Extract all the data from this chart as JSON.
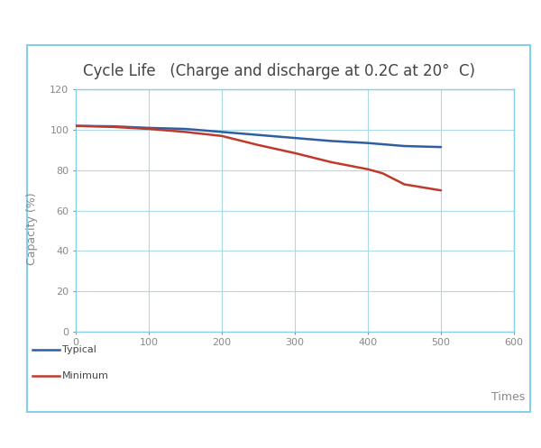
{
  "title": "Cycle Life   (Charge and discharge at 0.2C at 20°  C)",
  "xlabel": "Times",
  "ylabel": "Capacity (%)",
  "xlim": [
    0,
    600
  ],
  "ylim": [
    0,
    120
  ],
  "xticks": [
    0,
    100,
    200,
    300,
    400,
    500,
    600
  ],
  "yticks": [
    0,
    20,
    40,
    60,
    80,
    100,
    120
  ],
  "typical_x": [
    0,
    50,
    100,
    150,
    200,
    250,
    300,
    350,
    400,
    450,
    500
  ],
  "typical_y": [
    102.0,
    101.8,
    101.0,
    100.5,
    99.0,
    97.5,
    96.0,
    94.5,
    93.5,
    92.0,
    91.5
  ],
  "minimum_x": [
    0,
    50,
    100,
    150,
    200,
    250,
    300,
    350,
    400,
    420,
    450,
    500
  ],
  "minimum_y": [
    102.0,
    101.5,
    100.5,
    99.0,
    97.0,
    92.5,
    88.5,
    84.0,
    80.5,
    78.5,
    73.0,
    70.0
  ],
  "typical_color": "#2E5FA3",
  "minimum_color": "#C0392B",
  "grid_color": "#ADD8E6",
  "border_color": "#87CEEB",
  "plot_bg": "#FFFFFF",
  "outer_bg": "#FFFFFF",
  "box_bg": "#FFFFFF",
  "legend_typical": "Typical",
  "legend_minimum": "Minimum",
  "title_fontsize": 12,
  "axis_label_fontsize": 9,
  "tick_fontsize": 8,
  "legend_fontsize": 8,
  "line_width": 1.8
}
